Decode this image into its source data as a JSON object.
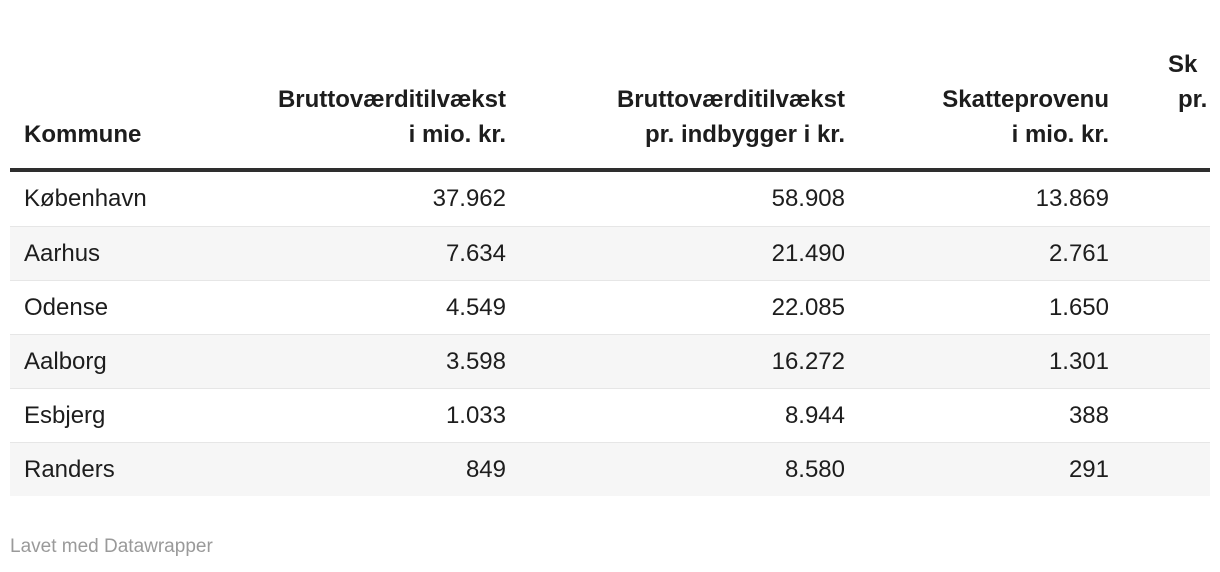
{
  "chart_data": {
    "type": "table",
    "columns": [
      "Kommune",
      "Bruttoværditilvækst i mio. kr.",
      "Bruttoværditilvækst pr. indbygger i kr.",
      "Skatteprovenu i mio. kr."
    ],
    "rows": [
      [
        "København",
        "37.962",
        "58.908",
        "13.869"
      ],
      [
        "Aarhus",
        "7.634",
        "21.490",
        "2.761"
      ],
      [
        "Odense",
        "4.549",
        "22.085",
        "1.650"
      ],
      [
        "Aalborg",
        "3.598",
        "16.272",
        "1.301"
      ],
      [
        "Esbjerg",
        "1.033",
        "8.944",
        "388"
      ],
      [
        "Randers",
        "849",
        "8.580",
        "291"
      ]
    ]
  },
  "header": {
    "kommune": "Kommune",
    "col2": {
      "line1": "Bruttoværditilvækst",
      "line2": "i mio. kr."
    },
    "col3": {
      "line1": "Bruttoværditilvækst",
      "line2": "pr. indbygger i kr."
    },
    "col4": {
      "line1": "Skatteprovenu",
      "line2": "i mio. kr."
    },
    "col5_clipped": {
      "line1": "Sk",
      "line2": "pr."
    }
  },
  "footer": {
    "credit": "Lavet med Datawrapper"
  },
  "colors": {
    "background": "#ffffff",
    "text": "#1d1d1d",
    "header_rule": "#2e2e2e",
    "zebra_stripe": "#f6f6f6",
    "row_border": "#e6e6e6",
    "credit_text": "#9a9a9a"
  }
}
